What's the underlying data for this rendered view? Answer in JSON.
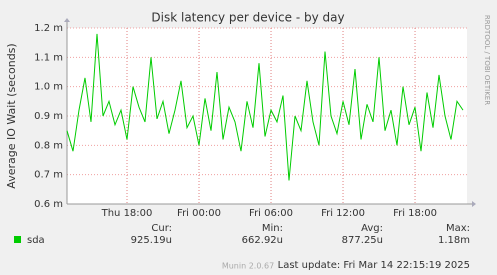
{
  "chart_data": {
    "type": "line",
    "title": "Disk latency per device - by day",
    "y_label": "Average IO Wait (seconds)",
    "side_text": "RRDTOOL / TOBI OETIKER",
    "x": [
      13,
      13.5,
      14,
      14.5,
      15,
      15.5,
      16,
      16.5,
      17,
      17.5,
      18,
      18.5,
      19,
      19.5,
      20,
      20.5,
      21,
      21.5,
      22,
      22.5,
      23,
      23.5,
      24,
      24.5,
      25,
      25.5,
      26,
      26.5,
      27,
      27.5,
      28,
      28.5,
      29,
      29.5,
      30,
      30.5,
      31,
      31.5,
      32,
      32.5,
      33,
      33.5,
      34,
      34.5,
      35,
      35.5,
      36,
      36.5,
      37,
      37.5,
      38,
      38.5,
      39,
      39.5,
      40,
      40.5,
      41,
      41.5,
      42,
      42.5,
      43,
      43.5,
      44,
      44.5,
      45,
      45.5,
      46
    ],
    "series": [
      {
        "name": "sda",
        "color": "#00cc00",
        "values": [
          0.85,
          0.78,
          0.92,
          1.03,
          0.88,
          1.18,
          0.9,
          0.95,
          0.87,
          0.92,
          0.82,
          1.0,
          0.93,
          0.88,
          1.1,
          0.89,
          0.95,
          0.84,
          0.92,
          1.02,
          0.86,
          0.9,
          0.8,
          0.96,
          0.85,
          1.05,
          0.82,
          0.93,
          0.88,
          0.78,
          0.95,
          0.86,
          1.08,
          0.83,
          0.92,
          0.88,
          0.97,
          0.68,
          0.9,
          0.85,
          1.02,
          0.88,
          0.8,
          1.12,
          0.9,
          0.84,
          0.95,
          0.87,
          1.06,
          0.82,
          0.94,
          0.88,
          1.1,
          0.85,
          0.92,
          0.8,
          1.0,
          0.87,
          0.93,
          0.78,
          0.98,
          0.86,
          1.04,
          0.9,
          0.82,
          0.95,
          0.92
        ]
      }
    ],
    "xlim": [
      13,
      46.33
    ],
    "xticks": [
      {
        "value": 18,
        "label": "Thu 18:00"
      },
      {
        "value": 24,
        "label": "Fri 00:00"
      },
      {
        "value": 30,
        "label": "Fri 06:00"
      },
      {
        "value": 36,
        "label": "Fri 12:00"
      },
      {
        "value": 42,
        "label": "Fri 18:00"
      }
    ],
    "ylim": [
      0.6,
      1.2
    ],
    "yticks": [
      {
        "value": 0.6,
        "label": "0.6 m"
      },
      {
        "value": 0.7,
        "label": "0.7 m"
      },
      {
        "value": 0.8,
        "label": "0.8 m"
      },
      {
        "value": 0.9,
        "label": "0.9 m"
      },
      {
        "value": 1.0,
        "label": "1.0 m"
      },
      {
        "value": 1.1,
        "label": "1.1 m"
      },
      {
        "value": 1.2,
        "label": "1.2 m"
      }
    ],
    "grid": true,
    "stats": {
      "headers": [
        "Cur:",
        "Min:",
        "Avg:",
        "Max:"
      ],
      "values": [
        "925.19u",
        "662.92u",
        "877.25u",
        "1.18m"
      ]
    },
    "last_update": "Last update: Fri Mar 14 22:15:19 2025",
    "footer": "Munin 2.0.67"
  }
}
